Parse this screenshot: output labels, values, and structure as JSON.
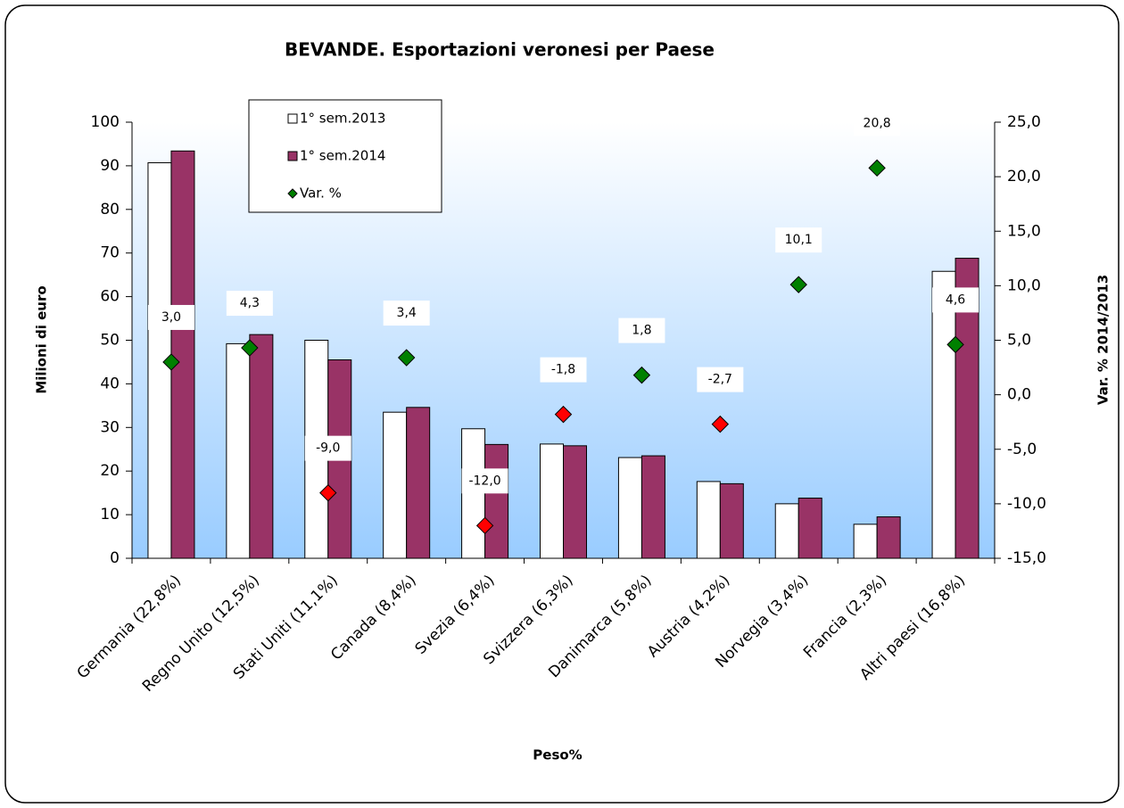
{
  "chart_data": {
    "type": "bar",
    "title": "BEVANDE. Esportazioni veronesi per Paese",
    "xlabel": "Peso%",
    "ylabel": "Milioni di euro",
    "y2label": "Var. % 2014/2013",
    "categories": [
      "Germania (22,8%)",
      "Regno Unito (12,5%)",
      "Stati Uniti (11,1%)",
      "Canada (8,4%)",
      "Svezia (6,4%)",
      "Svizzera (6,3%)",
      "Danimarca (5,8%)",
      "Austria (4,2%)",
      "Norvegia (3,4%)",
      "Francia (2,3%)",
      "Altri paesi (16,8%)"
    ],
    "series": [
      {
        "name": "1° sem.2013",
        "color": "#ffffff",
        "values": [
          90.7,
          49.2,
          50.0,
          33.5,
          29.7,
          26.2,
          23.1,
          17.6,
          12.5,
          7.8,
          65.8
        ]
      },
      {
        "name": "1° sem.2014",
        "color": "#993366",
        "values": [
          93.4,
          51.3,
          45.5,
          34.6,
          26.1,
          25.8,
          23.5,
          17.1,
          13.8,
          9.5,
          68.8
        ]
      },
      {
        "name": "Var. %",
        "type": "scatter",
        "axis": "y2",
        "color": "#008000",
        "negative_color": "#ff0000",
        "values": [
          3.0,
          4.3,
          -9.0,
          3.4,
          -12.0,
          -1.8,
          1.8,
          -2.7,
          10.1,
          20.8,
          4.6
        ],
        "value_labels": [
          "3,0",
          "4,3",
          "-9,0",
          "3,4",
          "-12,0",
          "-1,8",
          "1,8",
          "-2,7",
          "10,1",
          "20,8",
          "4,6"
        ]
      }
    ],
    "ylim": [
      0,
      100
    ],
    "yticks": [
      0,
      10,
      20,
      30,
      40,
      50,
      60,
      70,
      80,
      90,
      100
    ],
    "y2lim": [
      -15,
      25
    ],
    "y2ticks": [
      {
        "value": -15,
        "label": "-15,0"
      },
      {
        "value": -10,
        "label": "-10,0"
      },
      {
        "value": -5,
        "label": "-5,0"
      },
      {
        "value": 0,
        "label": "0,0"
      },
      {
        "value": 5,
        "label": "5,0"
      },
      {
        "value": 10,
        "label": "10,0"
      },
      {
        "value": 15,
        "label": "15,0"
      },
      {
        "value": 20,
        "label": "20,0"
      },
      {
        "value": 25,
        "label": "25,0"
      }
    ],
    "grid": false,
    "legend": "top-left"
  }
}
